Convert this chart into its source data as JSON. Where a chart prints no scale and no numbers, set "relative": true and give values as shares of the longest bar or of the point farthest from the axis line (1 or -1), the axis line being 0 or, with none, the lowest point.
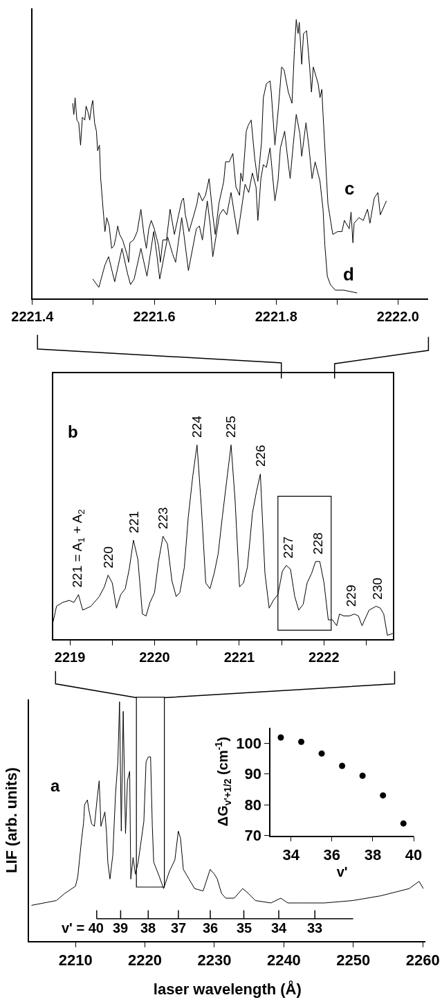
{
  "chart_data": [
    {
      "type": "line",
      "relative": true,
      "xlim": [
        2221.4,
        2222.05
      ],
      "xticks": [
        2221.4,
        {
          "value": 2221.5,
          "label": null
        },
        2221.6,
        {
          "value": 2221.7,
          "label": null
        },
        2221.8,
        {
          "value": 2221.9,
          "label": null
        },
        {
          "value": 2222.0,
          "label": "2222.0"
        }
      ],
      "tick_labels": "x",
      "series": [
        {
          "name": "c",
          "color": "#000000",
          "x": [
            2221.466,
            2221.468,
            2221.47,
            2221.473,
            2221.476,
            2221.479,
            2221.482,
            2221.486,
            2221.488,
            2221.491,
            2221.494,
            2221.497,
            2221.499,
            2221.502,
            2221.505,
            2221.507,
            2221.51,
            2221.512,
            2221.516,
            2221.519,
            2221.522,
            2221.526,
            2221.53,
            2221.534,
            2221.537,
            2221.54,
            2221.543,
            2221.548,
            2221.555,
            2221.558,
            2221.56,
            2221.566,
            2221.572,
            2221.578,
            2221.583,
            2221.587,
            2221.591,
            2221.595,
            2221.6,
            2221.607,
            2221.61,
            2221.614,
            2221.62,
            2221.626,
            2221.633,
            2221.64,
            2221.645,
            2221.648,
            2221.651,
            2221.657,
            2221.665,
            2221.67,
            2221.673,
            2221.679,
            2221.684,
            2221.69,
            2221.696,
            2221.7,
            2221.706,
            2221.714,
            2221.717,
            2221.723,
            2221.729,
            2221.731,
            2221.734,
            2221.74,
            2221.742,
            2221.745,
            2221.751,
            2221.754,
            2221.759,
            2221.765,
            2221.77,
            2221.776,
            2221.779,
            2221.784,
            2221.79,
            2221.792,
            2221.798,
            2221.804,
            2221.809,
            2221.813,
            2221.82,
            2221.826,
            2221.83,
            2221.833,
            2221.836,
            2221.838,
            2221.842,
            2221.845,
            2221.85,
            2221.855,
            2221.858,
            2221.861,
            2221.869,
            2221.872,
            2221.875,
            2221.877,
            2221.882,
            2221.885,
            2221.89,
            2221.893,
            2221.901,
            2221.908,
            2221.912,
            2221.92,
            2221.923,
            2221.926,
            2221.928,
            2221.936,
            2221.943,
            2221.95,
            2221.954,
            2221.961,
            2221.967,
            2221.971,
            2221.977,
            2221.981
          ],
          "values": [
            0.7,
            0.66,
            0.72,
            0.64,
            0.63,
            0.55,
            0.65,
            0.64,
            0.69,
            0.67,
            0.64,
            0.69,
            0.71,
            0.63,
            0.6,
            0.53,
            0.55,
            0.43,
            0.32,
            0.24,
            0.29,
            0.26,
            0.18,
            0.19,
            0.22,
            0.26,
            0.23,
            0.21,
            0.16,
            0.13,
            0.2,
            0.21,
            0.24,
            0.32,
            0.23,
            0.18,
            0.25,
            0.28,
            0.25,
            0.19,
            0.13,
            0.21,
            0.21,
            0.32,
            0.23,
            0.3,
            0.35,
            0.36,
            0.3,
            0.24,
            0.3,
            0.34,
            0.38,
            0.35,
            0.37,
            0.43,
            0.3,
            0.23,
            0.34,
            0.42,
            0.49,
            0.49,
            0.52,
            0.47,
            0.4,
            0.37,
            0.45,
            0.42,
            0.6,
            0.62,
            0.64,
            0.5,
            0.42,
            0.56,
            0.72,
            0.77,
            0.78,
            0.74,
            0.55,
            0.69,
            0.83,
            0.82,
            0.74,
            0.7,
            0.89,
            1.0,
            0.95,
            0.99,
            0.84,
            0.95,
            0.96,
            0.83,
            0.74,
            0.83,
            0.77,
            0.72,
            0.75,
            0.66,
            0.46,
            0.34,
            0.27,
            0.23,
            0.24,
            0.24,
            0.28,
            0.25,
            0.31,
            0.2,
            0.27,
            0.29,
            0.28,
            0.32,
            0.27,
            0.36,
            0.38,
            0.3,
            0.33,
            0.35
          ]
        },
        {
          "name": "d",
          "color": "#000000",
          "x": [
            2221.499,
            2221.509,
            2221.519,
            2221.525,
            2221.535,
            2221.547,
            2221.556,
            2221.561,
            2221.567,
            2221.578,
            2221.588,
            2221.599,
            2221.604,
            2221.609,
            2221.622,
            2221.63,
            2221.635,
            2221.645,
            2221.648,
            2221.656,
            2221.669,
            2221.674,
            2221.679,
            2221.687,
            2221.692,
            2221.696,
            2221.707,
            2221.713,
            2221.719,
            2221.726,
            2221.731,
            2221.737,
            2221.749,
            2221.755,
            2221.761,
            2221.767,
            2221.77,
            2221.775,
            2221.779,
            2221.784,
            2221.79,
            2221.798,
            2221.803,
            2221.807,
            2221.814,
            2221.818,
            2221.823,
            2221.828,
            2221.833,
            2221.839,
            2221.842,
            2221.849,
            2221.854,
            2221.859,
            2221.864,
            2221.872,
            2221.877,
            2221.88,
            2221.884,
            2221.889,
            2221.897,
            2221.911,
            2221.933
          ],
          "values": [
            0.07,
            0.04,
            0.12,
            0.15,
            0.06,
            0.18,
            0.09,
            0.05,
            0.07,
            0.18,
            0.08,
            0.24,
            0.16,
            0.07,
            0.22,
            0.16,
            0.13,
            0.29,
            0.24,
            0.1,
            0.25,
            0.26,
            0.21,
            0.35,
            0.26,
            0.15,
            0.3,
            0.32,
            0.3,
            0.38,
            0.31,
            0.23,
            0.41,
            0.38,
            0.45,
            0.4,
            0.28,
            0.43,
            0.48,
            0.47,
            0.54,
            0.35,
            0.42,
            0.54,
            0.6,
            0.52,
            0.43,
            0.55,
            0.66,
            0.59,
            0.51,
            0.63,
            0.54,
            0.43,
            0.49,
            0.42,
            0.32,
            0.19,
            0.08,
            0.05,
            0.03,
            0.03,
            0.02
          ]
        }
      ]
    },
    {
      "type": "line",
      "relative": true,
      "xlim": [
        2218.8,
        2222.815
      ],
      "xticks": [
        2219,
        {
          "value": 2219.5,
          "label": null
        },
        2220,
        {
          "value": 2220.5,
          "label": null
        },
        2221,
        {
          "value": 2221.5,
          "label": null
        },
        2222,
        {
          "value": 2222.5,
          "label": null
        }
      ],
      "tick_labels": "x",
      "series": [
        {
          "color": "#000000",
          "x": [
            2218.802,
            2218.842,
            2218.915,
            2218.992,
            2219.048,
            2219.101,
            2219.151,
            2219.248,
            2219.347,
            2219.407,
            2219.451,
            2219.5,
            2219.55,
            2219.6,
            2219.653,
            2219.7,
            2219.75,
            2219.803,
            2219.856,
            2219.899,
            2219.946,
            2219.999,
            2220.046,
            2220.099,
            2220.152,
            2220.205,
            2220.255,
            2220.298,
            2220.351,
            2220.398,
            2220.451,
            2220.501,
            2220.551,
            2220.604,
            2220.654,
            2220.704,
            2220.751,
            2220.8,
            2220.85,
            2220.903,
            2220.95,
            2221.003,
            2221.05,
            2221.096,
            2221.156,
            2221.203,
            2221.249,
            2221.303,
            2221.353,
            2221.402,
            2221.456,
            2221.509,
            2221.555,
            2221.605,
            2221.655,
            2221.702,
            2221.755,
            2221.801,
            2221.855,
            2221.901,
            2221.951,
            2222.001,
            2222.051,
            2222.101,
            2222.15,
            2222.184,
            2222.234,
            2222.3,
            2222.36,
            2222.407,
            2222.45,
            2222.533,
            2222.616,
            2222.666,
            2222.706,
            2222.749,
            2222.812
          ],
          "values": [
            0.09,
            0.17,
            0.19,
            0.2,
            0.19,
            0.23,
            0.15,
            0.17,
            0.22,
            0.27,
            0.33,
            0.29,
            0.16,
            0.23,
            0.26,
            0.36,
            0.51,
            0.41,
            0.13,
            0.12,
            0.19,
            0.24,
            0.4,
            0.53,
            0.49,
            0.3,
            0.22,
            0.24,
            0.37,
            0.63,
            0.84,
            1.0,
            0.69,
            0.29,
            0.26,
            0.34,
            0.44,
            0.63,
            0.81,
            1.0,
            0.72,
            0.27,
            0.29,
            0.37,
            0.65,
            0.76,
            0.85,
            0.34,
            0.16,
            0.2,
            0.23,
            0.35,
            0.38,
            0.36,
            0.22,
            0.15,
            0.18,
            0.29,
            0.34,
            0.4,
            0.4,
            0.29,
            0.1,
            0.1,
            0.07,
            0.13,
            0.12,
            0.12,
            0.13,
            0.12,
            0.07,
            0.15,
            0.17,
            0.16,
            0.13,
            0.02,
            0.03
          ]
        }
      ],
      "annotations": [
        "b",
        {
          "text": "221 = A$_{1}$ + A$_{2}$",
          "x": 2219.1,
          "y": 0.23
        },
        {
          "text": "220",
          "x": 2219.45,
          "y": 0.33
        },
        {
          "text": "221",
          "x": 2219.75,
          "y": 0.51
        },
        {
          "text": "223",
          "x": 2220.1,
          "y": 0.53
        },
        {
          "text": "224",
          "x": 2220.5,
          "y": 1.0
        },
        {
          "text": "225",
          "x": 2220.9,
          "y": 1.0
        },
        {
          "text": "226",
          "x": 2221.25,
          "y": 0.85
        },
        {
          "text": "227",
          "x": 2221.58,
          "y": 0.38
        },
        {
          "text": "228",
          "x": 2221.93,
          "y": 0.4
        },
        {
          "text": "229",
          "x": 2222.32,
          "y": 0.13
        },
        {
          "text": "230",
          "x": 2222.63,
          "y": 0.17
        }
      ]
    },
    {
      "type": "line",
      "relative": true,
      "xlim": [
        2203.35,
        2260.41
      ],
      "xticks": [
        2210,
        2220,
        2230,
        2240,
        2250,
        2260
      ],
      "tick_labels": "x",
      "xlabel": "laser wavelength (Å)",
      "ylabel": "LIF (arb. units)",
      "series": [
        {
          "color": "#000000",
          "x": [
            2203.66,
            2207.24,
            2208.46,
            2210.0,
            2210.33,
            2210.89,
            2211.14,
            2211.22,
            2211.3,
            2211.71,
            2211.91,
            2212.32,
            2212.72,
            2213.13,
            2213.41,
            2213.66,
            2214.23,
            2214.47,
            2214.65,
            2214.96,
            2215.37,
            2215.77,
            2216.1,
            2216.34,
            2216.59,
            2216.87,
            2217.2,
            2217.48,
            2217.8,
            2217.96,
            2218.29,
            2218.62,
            2219.02,
            2219.84,
            2220.16,
            2220.49,
            2220.81,
            2221.06,
            2221.26,
            2222.07,
            2222.68,
            2223.5,
            2224.31,
            2224.8,
            2225.12,
            2225.53,
            2226.34,
            2227.15,
            2228.37,
            2229.39,
            2230.0,
            2230.41,
            2231.02,
            2231.63,
            2232.85,
            2234.07,
            2234.88,
            2235.89,
            2238.13,
            2239.55,
            2240.57,
            2242.6,
            2245.85,
            2249.91,
            2253.98,
            2258.05,
            2259.47,
            2260.08
          ],
          "values": [
            0.15,
            0.17,
            0.2,
            0.23,
            0.27,
            0.43,
            0.49,
            0.52,
            0.57,
            0.59,
            0.55,
            0.49,
            0.48,
            0.6,
            0.67,
            0.48,
            0.54,
            0.45,
            0.33,
            0.26,
            0.36,
            0.62,
            0.75,
            1.0,
            0.46,
            0.96,
            0.45,
            0.67,
            0.71,
            0.26,
            0.35,
            0.28,
            0.33,
            0.5,
            0.75,
            0.77,
            0.77,
            0.48,
            0.33,
            0.27,
            0.22,
            0.29,
            0.34,
            0.46,
            0.43,
            0.3,
            0.26,
            0.22,
            0.21,
            0.3,
            0.28,
            0.26,
            0.2,
            0.18,
            0.18,
            0.22,
            0.2,
            0.17,
            0.16,
            0.18,
            0.16,
            0.16,
            0.16,
            0.17,
            0.19,
            0.22,
            0.25,
            0.22
          ]
        }
      ],
      "annotations": [
        "a",
        "v' = 40",
        "39",
        "38",
        "37",
        "36",
        "35",
        "34",
        "33"
      ]
    },
    {
      "type": "scatter",
      "xlim": [
        33,
        40
      ],
      "ylim": [
        70,
        105
      ],
      "xticks": [
        34,
        36,
        38,
        40
      ],
      "yticks": [
        70,
        80,
        90,
        100
      ],
      "xlabel": "v'",
      "ylabel": "ΔG$_{v'+1/2}$ (cm$^{-1}$)",
      "marker": "circle",
      "series": [
        {
          "color": "#000000",
          "x": [
            33.5,
            34.5,
            35.5,
            36.5,
            37.5,
            38.5,
            39.5
          ],
          "values": [
            101.8,
            100.4,
            96.6,
            92.6,
            89.4,
            83.0,
            73.9
          ]
        }
      ]
    }
  ]
}
